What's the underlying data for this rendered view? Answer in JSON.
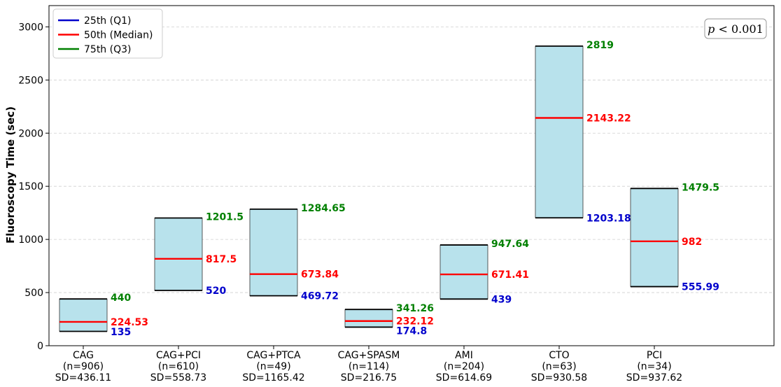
{
  "chart_data": {
    "type": "floating-bar",
    "ylabel": "Fluoroscopy Time (sec)",
    "ylim": [
      0,
      3200
    ],
    "yticks": [
      0,
      500,
      1000,
      1500,
      2000,
      2500,
      3000
    ],
    "grid": "y-dashed",
    "legend_position": "top-left",
    "annotation": {
      "italic": "p",
      "rest": " < 0.001"
    },
    "legend": [
      {
        "label": "25th (Q1)",
        "color": "#0000cc"
      },
      {
        "label": "50th (Median)",
        "color": "#ff0000"
      },
      {
        "label": "75th (Q3)",
        "color": "#008000"
      }
    ],
    "colors": {
      "box_fill": "#b8e2ec",
      "q1": "#0000cc",
      "median": "#ff0000",
      "q3": "#008000"
    },
    "categories": [
      {
        "name": "CAG",
        "n": "(n=906)",
        "sd": "SD=436.11",
        "q1": 135,
        "median": 224.53,
        "q3": 440,
        "q1_label": "135",
        "median_label": "224.53",
        "q3_label": "440"
      },
      {
        "name": "CAG+PCI",
        "n": "(n=610)",
        "sd": "SD=558.73",
        "q1": 520,
        "median": 817.5,
        "q3": 1201.5,
        "q1_label": "520",
        "median_label": "817.5",
        "q3_label": "1201.5"
      },
      {
        "name": "CAG+PTCA",
        "n": "(n=49)",
        "sd": "SD=1165.42",
        "q1": 469.72,
        "median": 673.84,
        "q3": 1284.65,
        "q1_label": "469.72",
        "median_label": "673.84",
        "q3_label": "1284.65"
      },
      {
        "name": "CAG+SPASM",
        "n": "(n=114)",
        "sd": "SD=216.75",
        "q1": 174.8,
        "median": 232.12,
        "q3": 341.26,
        "q1_label": "174.8",
        "median_label": "232.12",
        "q3_label": "341.26"
      },
      {
        "name": "AMI",
        "n": "(n=204)",
        "sd": "SD=614.69",
        "q1": 439,
        "median": 671.41,
        "q3": 947.64,
        "q1_label": "439",
        "median_label": "671.41",
        "q3_label": "947.64"
      },
      {
        "name": "CTO",
        "n": "(n=63)",
        "sd": "SD=930.58",
        "q1": 1203.18,
        "median": 2143.22,
        "q3": 2819,
        "q1_label": "1203.18",
        "median_label": "2143.22",
        "q3_label": "2819"
      },
      {
        "name": "PCI",
        "n": "(n=34)",
        "sd": "SD=937.62",
        "q1": 555.99,
        "median": 982,
        "q3": 1479.5,
        "q1_label": "555.99",
        "median_label": "982",
        "q3_label": "1479.5"
      }
    ]
  }
}
